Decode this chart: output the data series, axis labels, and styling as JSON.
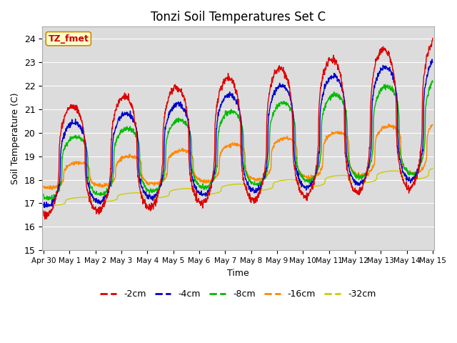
{
  "title": "Tonzi Soil Temperatures Set C",
  "xlabel": "Time",
  "ylabel": "Soil Temperature (C)",
  "ylim": [
    15.0,
    24.5
  ],
  "yticks": [
    15.0,
    16.0,
    17.0,
    18.0,
    19.0,
    20.0,
    21.0,
    22.0,
    23.0,
    24.0
  ],
  "series_colors": {
    "-2cm": "#dd0000",
    "-4cm": "#0000cc",
    "-8cm": "#00bb00",
    "-16cm": "#ff8800",
    "-32cm": "#cccc00"
  },
  "annotation_text": "TZ_fmet",
  "annotation_bg": "#ffffcc",
  "annotation_border": "#cc8800",
  "annotation_text_color": "#cc0000",
  "plot_bg": "#dcdcdc",
  "fig_bg": "#ffffff",
  "grid_color": "#ffffff",
  "xtick_positions": [
    0,
    1,
    2,
    3,
    4,
    5,
    6,
    7,
    8,
    9,
    10,
    11,
    12,
    13,
    14,
    15
  ],
  "xtick_labels": [
    "Apr 30",
    "May 1",
    "May 2",
    "May 3",
    "May 4",
    "May 5",
    "May 6",
    "May 7",
    "May 8",
    "May 9",
    "May 10",
    "May 11",
    "May 12",
    "May 13",
    "May 14",
    "May 15"
  ],
  "xlim": [
    -0.05,
    15.05
  ]
}
